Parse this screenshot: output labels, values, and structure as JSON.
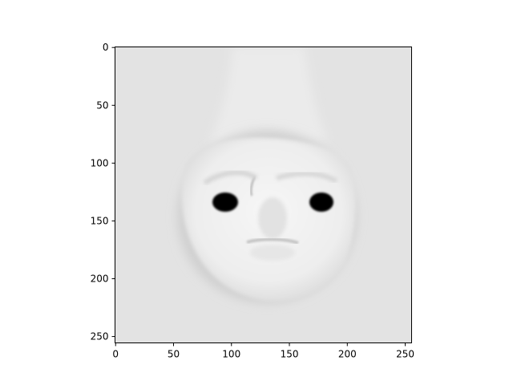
{
  "image": {
    "kind": "grayscale-face-rendering",
    "colormap": "gray",
    "background_color": "#e3e3e3",
    "face_color": "#f2f2f2",
    "eye_color": "#050505"
  },
  "axes": {
    "x_ticks": [
      "0",
      "50",
      "100",
      "150",
      "200",
      "250"
    ],
    "y_ticks": [
      "0",
      "50",
      "100",
      "150",
      "200",
      "250"
    ],
    "x_tick_values": [
      0,
      50,
      100,
      150,
      200,
      250
    ],
    "y_tick_values": [
      0,
      50,
      100,
      150,
      200,
      250
    ],
    "xlim": [
      -0.5,
      255.5
    ],
    "ylim": [
      255.5,
      -0.5
    ]
  }
}
